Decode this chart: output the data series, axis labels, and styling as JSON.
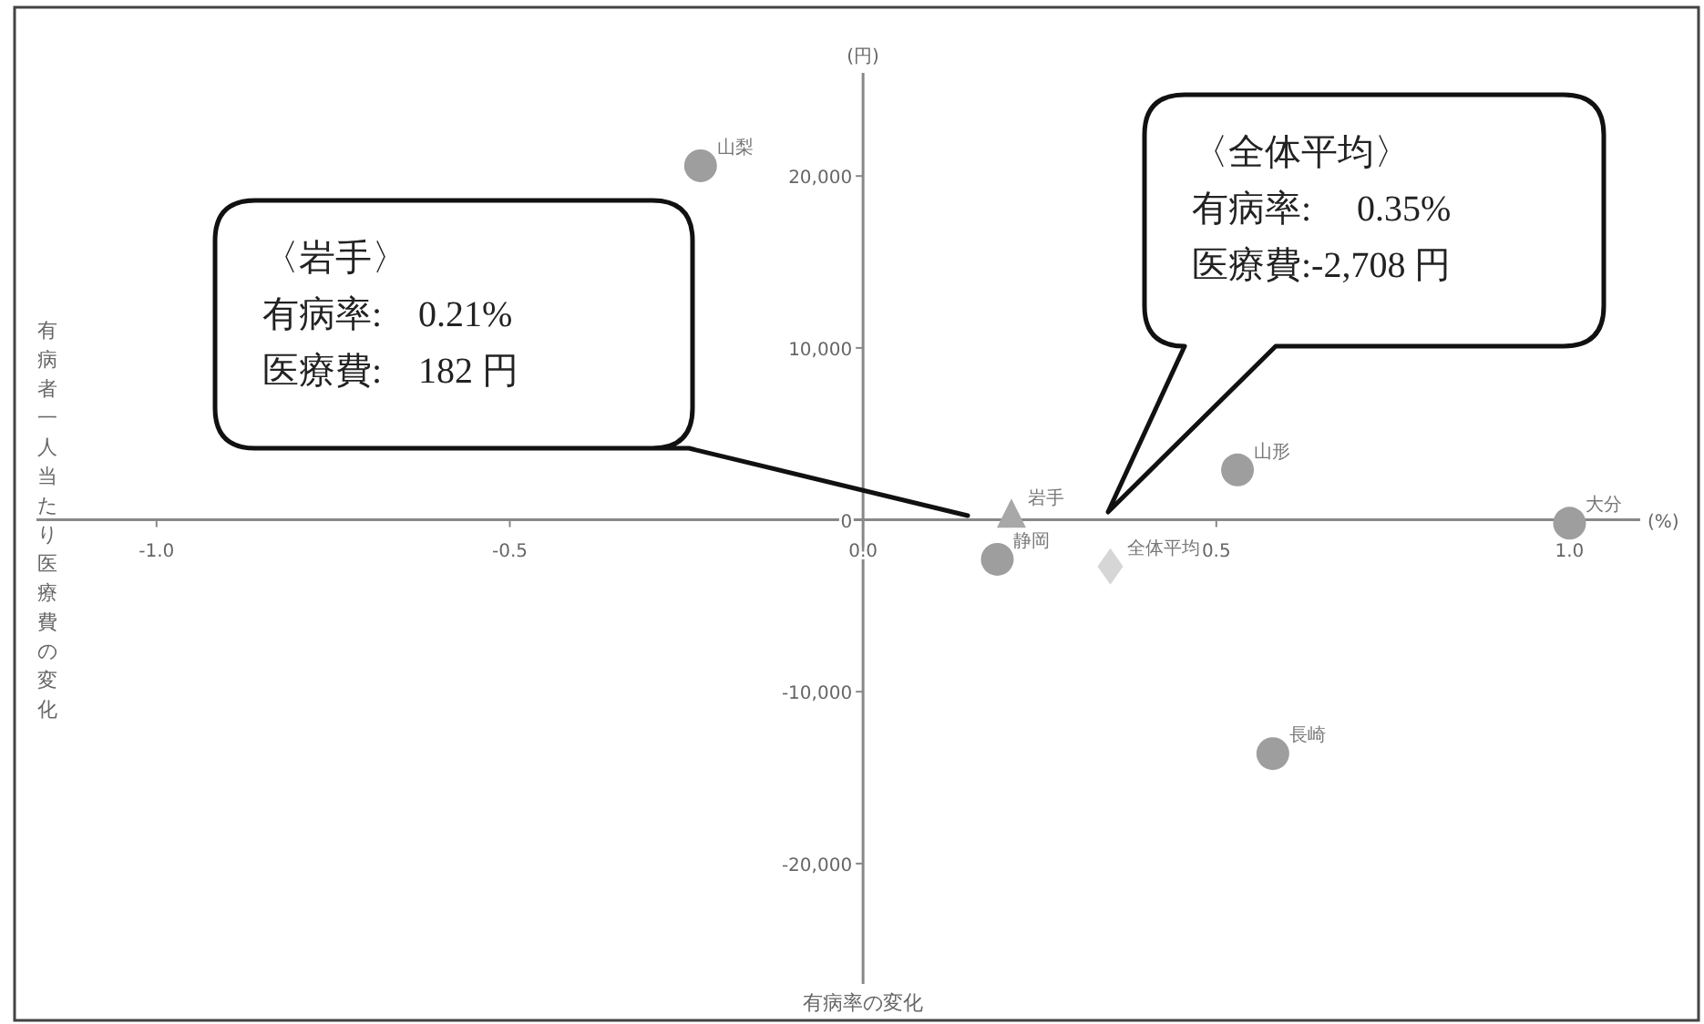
{
  "chart_data": {
    "type": "scatter",
    "xlabel": "有病率の変化",
    "ylabel": "有病者一人当たり医療費の変化",
    "xlim": [
      -1.17,
      1.1
    ],
    "ylim": [
      -27000,
      26000
    ],
    "xticks": [
      {
        "value": -1.0,
        "label": "-1.0"
      },
      {
        "value": -0.5,
        "label": "-0.5"
      },
      {
        "value": 0,
        "label": "0.0"
      },
      {
        "value": 0.5,
        "label": "0.5"
      },
      {
        "value": 1.0,
        "label": "1.0"
      }
    ],
    "yticks": [
      {
        "value": -20000,
        "label": "-20,000"
      },
      {
        "value": -10000,
        "label": "-10,000"
      },
      0,
      {
        "value": 10000,
        "label": "10,000"
      },
      {
        "value": 20000,
        "label": "20,000"
      }
    ],
    "series": [
      {
        "name": "山梨",
        "color": "#9e9e9e",
        "marker": "circle",
        "x": [
          -0.23
        ],
        "values": [
          20600
        ]
      },
      {
        "name": "岩手",
        "color": "#a8a8a8",
        "marker": "triangle",
        "x": [
          0.21
        ],
        "values": [
          182
        ]
      },
      {
        "name": "静岡",
        "color": "#9e9e9e",
        "marker": "circle",
        "x": [
          0.19
        ],
        "values": [
          -2300
        ]
      },
      {
        "name": "全体平均",
        "color": "#d6d6d6",
        "marker": "diamond",
        "x": [
          0.35
        ],
        "values": [
          -2708
        ]
      },
      {
        "name": "山形",
        "color": "#9e9e9e",
        "marker": "circle",
        "x": [
          0.53
        ],
        "values": [
          2900
        ]
      },
      {
        "name": "大分",
        "color": "#9e9e9e",
        "marker": "circle",
        "x": [
          1.0
        ],
        "values": [
          -200
        ]
      },
      {
        "name": "長崎",
        "color": "#9e9e9e",
        "marker": "circle",
        "x": [
          0.58
        ],
        "values": [
          -13600
        ]
      }
    ],
    "annotations": [
      "(円)",
      "(%)",
      "〈岩手〉",
      "有病率:　0.21%",
      "医療費:　182 円",
      "〈全体平均〉",
      "有病率:　 0.35%",
      "医療費:-2,708 円"
    ]
  }
}
